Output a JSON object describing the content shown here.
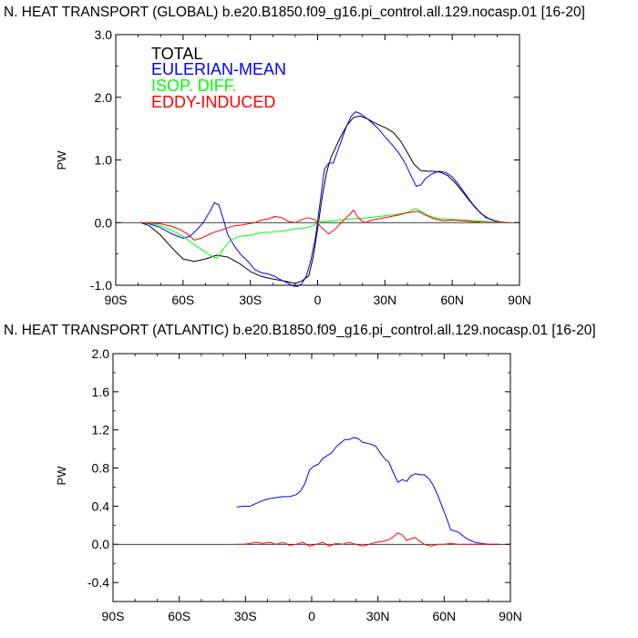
{
  "chart_data": [
    {
      "type": "line",
      "title": "N. HEAT TRANSPORT (GLOBAL) b.e20.B1850.f09_g16.pi_control.all.129.nocasp.01 [16-20]",
      "xlabel": "",
      "ylabel": "PW",
      "xlim": [
        -90,
        90
      ],
      "ylim": [
        -1.0,
        3.0
      ],
      "x_ticks": [
        -90,
        -60,
        -30,
        0,
        30,
        60,
        90
      ],
      "x_tick_labels": [
        "90S",
        "60S",
        "30S",
        "0",
        "30N",
        "60N",
        "90N"
      ],
      "y_ticks": [
        -1.0,
        0.0,
        1.0,
        2.0,
        3.0
      ],
      "y_tick_labels": [
        "-1.0",
        "0.0",
        "1.0",
        "2.0",
        "3.0"
      ],
      "y_tick_step": 0.5,
      "zero_line": true,
      "grid": false,
      "legend": {
        "placement": "top-left",
        "entries": [
          {
            "label": "TOTAL",
            "color": "#000000"
          },
          {
            "label": "EULERIAN-MEAN",
            "color": "#0000ff"
          },
          {
            "label": "ISOP. DIFF.",
            "color": "#00ff00"
          },
          {
            "label": "EDDY-INDUCED",
            "color": "#ff0000"
          }
        ]
      },
      "series": [
        {
          "name": "TOTAL",
          "color": "#000000",
          "x": [
            -79,
            -75,
            -70,
            -65,
            -60,
            -55,
            -50,
            -45,
            -40,
            -35,
            -30,
            -25,
            -20,
            -15,
            -10,
            -7,
            -4,
            -2,
            0,
            2,
            4,
            6,
            8,
            10,
            13,
            16,
            19,
            22,
            25,
            28,
            31,
            34,
            37,
            40,
            43,
            46,
            49,
            52,
            55,
            58,
            61,
            64,
            67,
            70,
            73,
            76,
            79,
            82,
            85
          ],
          "y": [
            0.0,
            -0.05,
            -0.2,
            -0.4,
            -0.58,
            -0.62,
            -0.58,
            -0.52,
            -0.55,
            -0.65,
            -0.78,
            -0.86,
            -0.9,
            -0.93,
            -0.97,
            -0.93,
            -0.85,
            -0.55,
            -0.1,
            0.4,
            0.8,
            1.05,
            1.2,
            1.35,
            1.55,
            1.68,
            1.7,
            1.66,
            1.6,
            1.55,
            1.5,
            1.43,
            1.3,
            1.12,
            0.93,
            0.83,
            0.82,
            0.82,
            0.8,
            0.75,
            0.65,
            0.52,
            0.38,
            0.25,
            0.14,
            0.07,
            0.03,
            0.01,
            0.0
          ]
        },
        {
          "name": "EULERIAN-MEAN",
          "color": "#0000ff",
          "x": [
            -79,
            -75,
            -70,
            -65,
            -60,
            -57,
            -54,
            -51,
            -48,
            -46,
            -44,
            -42,
            -40,
            -37,
            -34,
            -31,
            -28,
            -25,
            -22,
            -19,
            -16,
            -13,
            -11,
            -9,
            -7,
            -5,
            -3,
            -1,
            1,
            3,
            5,
            7,
            9,
            11,
            13,
            15,
            17,
            19,
            21,
            24,
            27,
            30,
            33,
            36,
            39,
            42,
            44,
            46,
            48,
            51,
            54,
            57,
            60,
            63,
            66,
            69,
            72,
            75,
            78,
            81,
            85
          ],
          "y": [
            0.0,
            -0.02,
            -0.08,
            -0.18,
            -0.25,
            -0.22,
            -0.12,
            0.0,
            0.18,
            0.32,
            0.28,
            0.05,
            -0.2,
            -0.38,
            -0.52,
            -0.62,
            -0.75,
            -0.8,
            -0.82,
            -0.86,
            -0.92,
            -0.97,
            -1.01,
            -1.02,
            -0.97,
            -0.85,
            -0.6,
            -0.25,
            0.3,
            0.85,
            0.95,
            0.95,
            1.15,
            1.35,
            1.55,
            1.7,
            1.77,
            1.74,
            1.69,
            1.6,
            1.5,
            1.37,
            1.25,
            1.12,
            0.95,
            0.72,
            0.58,
            0.6,
            0.7,
            0.78,
            0.82,
            0.8,
            0.73,
            0.6,
            0.45,
            0.3,
            0.18,
            0.08,
            0.04,
            0.01,
            0.0
          ]
        },
        {
          "name": "ISOP. DIFF.",
          "color": "#00ff00",
          "x": [
            -79,
            -75,
            -70,
            -65,
            -60,
            -55,
            -51,
            -48,
            -45,
            -42,
            -39,
            -35,
            -30,
            -25,
            -20,
            -15,
            -10,
            -5,
            -2,
            0,
            3,
            6,
            10,
            15,
            20,
            25,
            30,
            35,
            40,
            42,
            44,
            46,
            49,
            52,
            55,
            60,
            65,
            70,
            75,
            80,
            85
          ],
          "y": [
            0.0,
            -0.01,
            -0.05,
            -0.12,
            -0.22,
            -0.35,
            -0.45,
            -0.52,
            -0.57,
            -0.42,
            -0.28,
            -0.22,
            -0.2,
            -0.16,
            -0.15,
            -0.13,
            -0.1,
            -0.08,
            -0.05,
            0.0,
            0.02,
            0.03,
            0.04,
            0.06,
            0.07,
            0.09,
            0.11,
            0.13,
            0.16,
            0.2,
            0.22,
            0.18,
            0.12,
            0.08,
            0.06,
            0.05,
            0.04,
            0.03,
            0.02,
            0.01,
            0.0
          ]
        },
        {
          "name": "EDDY-INDUCED",
          "color": "#ff0000",
          "x": [
            -79,
            -75,
            -70,
            -65,
            -62,
            -58,
            -55,
            -52,
            -49,
            -46,
            -43,
            -40,
            -37,
            -34,
            -31,
            -28,
            -25,
            -22,
            -19,
            -16,
            -13,
            -10,
            -7,
            -4,
            -1,
            1,
            3,
            5,
            8,
            10,
            12,
            14,
            16,
            18,
            21,
            24,
            27,
            30,
            33,
            36,
            39,
            42,
            45,
            48,
            52,
            56,
            60,
            64,
            68,
            72,
            76,
            80,
            85
          ],
          "y": [
            0.0,
            0.0,
            -0.02,
            -0.06,
            -0.1,
            -0.18,
            -0.28,
            -0.25,
            -0.2,
            -0.15,
            -0.12,
            -0.08,
            -0.05,
            -0.04,
            -0.02,
            0.0,
            0.04,
            0.06,
            0.1,
            0.08,
            0.02,
            0.0,
            0.05,
            0.08,
            0.04,
            -0.05,
            -0.12,
            -0.18,
            -0.1,
            -0.02,
            0.05,
            0.12,
            0.2,
            0.08,
            0.0,
            0.04,
            0.06,
            0.08,
            0.1,
            0.12,
            0.15,
            0.17,
            0.18,
            0.12,
            0.06,
            0.03,
            0.04,
            0.03,
            0.02,
            0.01,
            0.0,
            0.0,
            0.0
          ]
        }
      ]
    },
    {
      "type": "line",
      "title": "N. HEAT TRANSPORT (ATLANTIC) b.e20.B1850.f09_g16.pi_control.all.129.nocasp.01 [16-20]",
      "xlabel": "",
      "ylabel": "PW",
      "xlim": [
        -90,
        90
      ],
      "ylim": [
        -0.6,
        2.0
      ],
      "x_ticks": [
        -90,
        -60,
        -30,
        0,
        30,
        60,
        90
      ],
      "x_tick_labels": [
        "90S",
        "60S",
        "30S",
        "0",
        "30N",
        "60N",
        "90N"
      ],
      "y_ticks": [
        -0.4,
        0.0,
        0.4,
        0.8,
        1.2,
        1.6,
        2.0
      ],
      "y_tick_labels": [
        "-0.4",
        "0.0",
        "0.4",
        "0.8",
        "1.2",
        "1.6",
        "2.0"
      ],
      "y_tick_step": 0.2,
      "zero_line": true,
      "grid": false,
      "series": [
        {
          "name": "EULERIAN-MEAN",
          "color": "#0000ff",
          "x": [
            -34,
            -31,
            -28,
            -25,
            -22,
            -19,
            -16,
            -13,
            -10,
            -7,
            -5,
            -3,
            -1,
            1,
            3,
            5,
            7,
            9,
            11,
            13,
            15,
            17,
            19,
            21,
            23,
            25,
            27,
            29,
            31,
            33,
            35,
            37,
            39,
            41,
            43,
            45,
            47,
            49,
            51,
            53,
            55,
            57,
            59,
            61,
            63,
            65,
            67,
            69,
            71,
            74,
            77,
            80,
            85
          ],
          "y": [
            0.39,
            0.4,
            0.4,
            0.43,
            0.46,
            0.48,
            0.49,
            0.5,
            0.5,
            0.52,
            0.56,
            0.64,
            0.78,
            0.82,
            0.84,
            0.9,
            0.93,
            0.96,
            1.02,
            1.06,
            1.1,
            1.1,
            1.12,
            1.11,
            1.07,
            1.06,
            1.05,
            1.03,
            0.96,
            0.9,
            0.86,
            0.75,
            0.65,
            0.68,
            0.66,
            0.72,
            0.74,
            0.73,
            0.73,
            0.69,
            0.62,
            0.52,
            0.4,
            0.28,
            0.15,
            0.14,
            0.12,
            0.08,
            0.05,
            0.02,
            0.01,
            0.0,
            0.0
          ]
        },
        {
          "name": "EDDY-INDUCED",
          "color": "#ff0000",
          "x": [
            -34,
            -31,
            -28,
            -25,
            -22,
            -19,
            -16,
            -13,
            -10,
            -7,
            -4,
            -1,
            2,
            5,
            8,
            11,
            14,
            17,
            20,
            23,
            26,
            29,
            32,
            35,
            37,
            39,
            41,
            43,
            45,
            47,
            49,
            51,
            54,
            57,
            60,
            63,
            66,
            70,
            75,
            80,
            85
          ],
          "y": [
            0.0,
            0.0,
            0.01,
            0.02,
            0.01,
            0.02,
            0.0,
            0.02,
            -0.01,
            0.0,
            0.02,
            -0.02,
            0.0,
            0.02,
            -0.02,
            0.01,
            0.0,
            0.02,
            0.0,
            -0.02,
            0.0,
            0.02,
            0.03,
            0.05,
            0.08,
            0.12,
            0.1,
            0.04,
            0.06,
            0.07,
            0.03,
            0.0,
            -0.02,
            0.0,
            0.0,
            0.01,
            0.0,
            0.0,
            0.0,
            0.0,
            0.0
          ]
        }
      ]
    }
  ]
}
